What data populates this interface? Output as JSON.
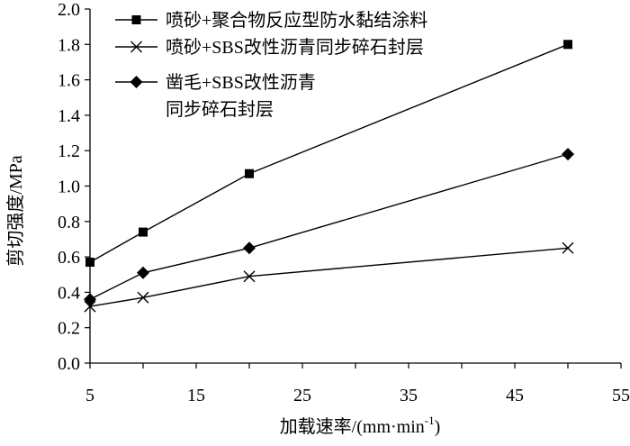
{
  "chart_data": {
    "type": "line",
    "xlabel": "加载速率/(mm·min",
    "xlabel_sup": "-1",
    "xlabel_tail": ")",
    "ylabel": "剪切强度/MPa",
    "xlim": [
      5,
      55
    ],
    "ylim": [
      0,
      2.0
    ],
    "x_ticks": [
      "5",
      "15",
      "25",
      "35",
      "45",
      "55"
    ],
    "y_ticks": [
      "0.0",
      "0.2",
      "0.4",
      "0.6",
      "0.8",
      "1.0",
      "1.2",
      "1.4",
      "1.6",
      "1.8",
      "2.0"
    ],
    "grid": false,
    "legend_position": "top-left",
    "series": [
      {
        "name": "喷砂+聚合物反应型防水黏结涂料",
        "name_lines": [
          "喷砂+聚合物反应型防水黏结涂料"
        ],
        "marker": "square",
        "color": "#000000",
        "x": [
          5,
          10,
          20,
          50
        ],
        "y": [
          0.57,
          0.74,
          1.07,
          1.8
        ]
      },
      {
        "name": "喷砂+SBS改性沥青同步碎石封层",
        "name_lines": [
          "喷砂+SBS改性沥青同步碎石封层"
        ],
        "marker": "x",
        "color": "#000000",
        "x": [
          5,
          10,
          20,
          50
        ],
        "y": [
          0.32,
          0.37,
          0.49,
          0.65
        ]
      },
      {
        "name": "凿毛+SBS改性沥青同步碎石封层",
        "name_lines": [
          "凿毛+SBS改性沥青",
          "同步碎石封层"
        ],
        "marker": "diamond",
        "color": "#000000",
        "x": [
          5,
          10,
          20,
          50
        ],
        "y": [
          0.36,
          0.51,
          0.65,
          1.18
        ]
      }
    ]
  }
}
